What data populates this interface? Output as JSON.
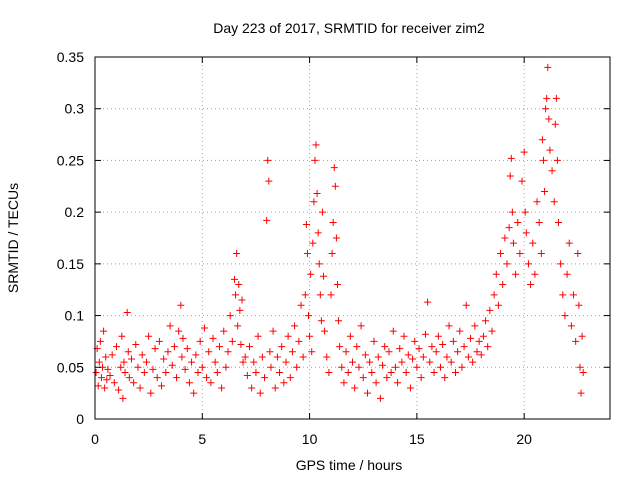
{
  "chart_data": {
    "type": "scatter",
    "title": "Day 223 of 2017, SRMTID for receiver zim2",
    "xlabel": "GPS time / hours",
    "ylabel": "SRMTID / TECUs",
    "xlim": [
      0,
      24
    ],
    "ylim": [
      0,
      0.35
    ],
    "xticks": [
      0,
      5,
      10,
      15,
      20
    ],
    "xtick_labels": [
      "0",
      "5",
      "10",
      "15",
      "20"
    ],
    "yticks": [
      0,
      0.05,
      0.1,
      0.15,
      0.2,
      0.25,
      0.3,
      0.35
    ],
    "ytick_labels": [
      "0",
      "0.05",
      "0.1",
      "0.15",
      "0.2",
      "0.25",
      "0.3",
      "0.35"
    ],
    "grid": true,
    "marker": "+",
    "color": "#ff0000",
    "series": [
      {
        "name": "SRMTID",
        "points": [
          [
            0.05,
            0.045
          ],
          [
            0.1,
            0.068
          ],
          [
            0.15,
            0.032
          ],
          [
            0.2,
            0.055
          ],
          [
            0.25,
            0.075
          ],
          [
            0.3,
            0.04
          ],
          [
            0.35,
            0.05
          ],
          [
            0.4,
            0.085
          ],
          [
            0.45,
            0.03
          ],
          [
            0.5,
            0.06
          ],
          [
            0.55,
            0.038
          ],
          [
            0.6,
            0.048
          ],
          [
            0.7,
            0.042
          ],
          [
            0.8,
            0.062
          ],
          [
            0.9,
            0.035
          ],
          [
            1.0,
            0.07
          ],
          [
            1.1,
            0.028
          ],
          [
            1.2,
            0.05
          ],
          [
            1.25,
            0.08
          ],
          [
            1.3,
            0.02
          ],
          [
            1.35,
            0.055
          ],
          [
            1.4,
            0.045
          ],
          [
            1.5,
            0.103
          ],
          [
            1.55,
            0.065
          ],
          [
            1.6,
            0.04
          ],
          [
            1.7,
            0.058
          ],
          [
            1.8,
            0.035
          ],
          [
            1.9,
            0.072
          ],
          [
            2.0,
            0.05
          ],
          [
            2.1,
            0.03
          ],
          [
            2.2,
            0.062
          ],
          [
            2.3,
            0.045
          ],
          [
            2.4,
            0.055
          ],
          [
            2.5,
            0.08
          ],
          [
            2.6,
            0.025
          ],
          [
            2.7,
            0.048
          ],
          [
            2.8,
            0.068
          ],
          [
            2.9,
            0.04
          ],
          [
            3.0,
            0.075
          ],
          [
            3.1,
            0.032
          ],
          [
            3.2,
            0.058
          ],
          [
            3.3,
            0.045
          ],
          [
            3.4,
            0.065
          ],
          [
            3.5,
            0.09
          ],
          [
            3.6,
            0.052
          ],
          [
            3.7,
            0.07
          ],
          [
            3.8,
            0.04
          ],
          [
            3.9,
            0.085
          ],
          [
            4.0,
            0.11
          ],
          [
            4.05,
            0.06
          ],
          [
            4.1,
            0.078
          ],
          [
            4.2,
            0.048
          ],
          [
            4.3,
            0.068
          ],
          [
            4.4,
            0.035
          ],
          [
            4.5,
            0.055
          ],
          [
            4.6,
            0.025
          ],
          [
            4.7,
            0.062
          ],
          [
            4.8,
            0.045
          ],
          [
            4.9,
            0.075
          ],
          [
            5.0,
            0.05
          ],
          [
            5.1,
            0.088
          ],
          [
            5.2,
            0.04
          ],
          [
            5.3,
            0.065
          ],
          [
            5.4,
            0.035
          ],
          [
            5.5,
            0.078
          ],
          [
            5.6,
            0.055
          ],
          [
            5.7,
            0.045
          ],
          [
            5.8,
            0.07
          ],
          [
            5.9,
            0.03
          ],
          [
            6.0,
            0.085
          ],
          [
            6.1,
            0.05
          ],
          [
            6.2,
            0.065
          ],
          [
            6.3,
            0.1
          ],
          [
            6.4,
            0.075
          ],
          [
            6.5,
            0.135
          ],
          [
            6.55,
            0.12
          ],
          [
            6.6,
            0.16
          ],
          [
            6.65,
            0.09
          ],
          [
            6.7,
            0.13
          ],
          [
            6.75,
            0.105
          ],
          [
            6.8,
            0.072
          ],
          [
            6.85,
            0.115
          ],
          [
            6.9,
            0.055
          ],
          [
            7.0,
            0.06
          ],
          [
            7.1,
            0.042
          ],
          [
            7.2,
            0.07
          ],
          [
            7.3,
            0.03
          ],
          [
            7.4,
            0.055
          ],
          [
            7.5,
            0.045
          ],
          [
            7.6,
            0.08
          ],
          [
            7.7,
            0.025
          ],
          [
            7.8,
            0.06
          ],
          [
            7.9,
            0.04
          ],
          [
            8.0,
            0.192
          ],
          [
            8.05,
            0.25
          ],
          [
            8.1,
            0.23
          ],
          [
            8.15,
            0.065
          ],
          [
            8.2,
            0.05
          ],
          [
            8.3,
            0.085
          ],
          [
            8.4,
            0.03
          ],
          [
            8.5,
            0.06
          ],
          [
            8.6,
            0.045
          ],
          [
            8.7,
            0.07
          ],
          [
            8.8,
            0.035
          ],
          [
            8.9,
            0.055
          ],
          [
            9.0,
            0.08
          ],
          [
            9.1,
            0.04
          ],
          [
            9.2,
            0.065
          ],
          [
            9.3,
            0.09
          ],
          [
            9.4,
            0.05
          ],
          [
            9.5,
            0.075
          ],
          [
            9.6,
            0.11
          ],
          [
            9.7,
            0.06
          ],
          [
            9.8,
            0.12
          ],
          [
            9.85,
            0.188
          ],
          [
            9.9,
            0.16
          ],
          [
            9.95,
            0.1
          ],
          [
            10.0,
            0.08
          ],
          [
            10.05,
            0.14
          ],
          [
            10.1,
            0.065
          ],
          [
            10.15,
            0.17
          ],
          [
            10.2,
            0.21
          ],
          [
            10.25,
            0.25
          ],
          [
            10.3,
            0.265
          ],
          [
            10.35,
            0.218
          ],
          [
            10.4,
            0.18
          ],
          [
            10.45,
            0.15
          ],
          [
            10.5,
            0.12
          ],
          [
            10.55,
            0.095
          ],
          [
            10.6,
            0.2
          ],
          [
            10.65,
            0.138
          ],
          [
            10.7,
            0.085
          ],
          [
            10.8,
            0.06
          ],
          [
            10.9,
            0.045
          ],
          [
            11.0,
            0.12
          ],
          [
            11.05,
            0.16
          ],
          [
            11.1,
            0.19
          ],
          [
            11.15,
            0.243
          ],
          [
            11.2,
            0.225
          ],
          [
            11.25,
            0.175
          ],
          [
            11.3,
            0.13
          ],
          [
            11.35,
            0.095
          ],
          [
            11.4,
            0.07
          ],
          [
            11.5,
            0.05
          ],
          [
            11.6,
            0.035
          ],
          [
            11.7,
            0.065
          ],
          [
            11.8,
            0.045
          ],
          [
            11.9,
            0.08
          ],
          [
            12.0,
            0.055
          ],
          [
            12.1,
            0.03
          ],
          [
            12.2,
            0.07
          ],
          [
            12.3,
            0.05
          ],
          [
            12.4,
            0.09
          ],
          [
            12.5,
            0.04
          ],
          [
            12.6,
            0.062
          ],
          [
            12.7,
            0.025
          ],
          [
            12.8,
            0.055
          ],
          [
            12.9,
            0.045
          ],
          [
            13.0,
            0.075
          ],
          [
            13.1,
            0.035
          ],
          [
            13.2,
            0.06
          ],
          [
            13.3,
            0.02
          ],
          [
            13.4,
            0.052
          ],
          [
            13.5,
            0.07
          ],
          [
            13.6,
            0.04
          ],
          [
            13.7,
            0.065
          ],
          [
            13.8,
            0.045
          ],
          [
            13.9,
            0.085
          ],
          [
            14.0,
            0.05
          ],
          [
            14.1,
            0.035
          ],
          [
            14.2,
            0.068
          ],
          [
            14.3,
            0.055
          ],
          [
            14.4,
            0.08
          ],
          [
            14.5,
            0.045
          ],
          [
            14.6,
            0.062
          ],
          [
            14.7,
            0.03
          ],
          [
            14.8,
            0.058
          ],
          [
            14.9,
            0.075
          ],
          [
            15.0,
            0.05
          ],
          [
            15.1,
            0.068
          ],
          [
            15.2,
            0.04
          ],
          [
            15.3,
            0.06
          ],
          [
            15.4,
            0.082
          ],
          [
            15.5,
            0.113
          ],
          [
            15.6,
            0.055
          ],
          [
            15.7,
            0.07
          ],
          [
            15.8,
            0.045
          ],
          [
            15.9,
            0.065
          ],
          [
            16.0,
            0.08
          ],
          [
            16.1,
            0.05
          ],
          [
            16.2,
            0.072
          ],
          [
            16.3,
            0.04
          ],
          [
            16.4,
            0.06
          ],
          [
            16.5,
            0.09
          ],
          [
            16.6,
            0.055
          ],
          [
            16.7,
            0.075
          ],
          [
            16.8,
            0.045
          ],
          [
            16.9,
            0.065
          ],
          [
            17.0,
            0.085
          ],
          [
            17.1,
            0.05
          ],
          [
            17.2,
            0.07
          ],
          [
            17.3,
            0.11
          ],
          [
            17.4,
            0.06
          ],
          [
            17.5,
            0.078
          ],
          [
            17.6,
            0.055
          ],
          [
            17.7,
            0.09
          ],
          [
            17.8,
            0.065
          ],
          [
            17.9,
            0.075
          ],
          [
            18.0,
            0.062
          ],
          [
            18.1,
            0.08
          ],
          [
            18.2,
            0.095
          ],
          [
            18.3,
            0.07
          ],
          [
            18.4,
            0.105
          ],
          [
            18.5,
            0.085
          ],
          [
            18.6,
            0.12
          ],
          [
            18.7,
            0.14
          ],
          [
            18.8,
            0.11
          ],
          [
            18.9,
            0.16
          ],
          [
            19.0,
            0.13
          ],
          [
            19.1,
            0.175
          ],
          [
            19.2,
            0.15
          ],
          [
            19.3,
            0.185
          ],
          [
            19.35,
            0.235
          ],
          [
            19.4,
            0.252
          ],
          [
            19.45,
            0.2
          ],
          [
            19.5,
            0.17
          ],
          [
            19.6,
            0.14
          ],
          [
            19.7,
            0.19
          ],
          [
            19.8,
            0.16
          ],
          [
            19.9,
            0.23
          ],
          [
            20.0,
            0.258
          ],
          [
            20.05,
            0.2
          ],
          [
            20.1,
            0.18
          ],
          [
            20.2,
            0.15
          ],
          [
            20.3,
            0.13
          ],
          [
            20.4,
            0.17
          ],
          [
            20.5,
            0.14
          ],
          [
            20.6,
            0.21
          ],
          [
            20.7,
            0.19
          ],
          [
            20.8,
            0.16
          ],
          [
            20.85,
            0.27
          ],
          [
            20.9,
            0.25
          ],
          [
            20.95,
            0.22
          ],
          [
            21.0,
            0.3
          ],
          [
            21.05,
            0.31
          ],
          [
            21.1,
            0.34
          ],
          [
            21.15,
            0.29
          ],
          [
            21.2,
            0.26
          ],
          [
            21.3,
            0.24
          ],
          [
            21.4,
            0.21
          ],
          [
            21.45,
            0.285
          ],
          [
            21.5,
            0.31
          ],
          [
            21.55,
            0.25
          ],
          [
            21.6,
            0.19
          ],
          [
            21.7,
            0.15
          ],
          [
            21.8,
            0.12
          ],
          [
            21.9,
            0.1
          ],
          [
            22.0,
            0.14
          ],
          [
            22.1,
            0.17
          ],
          [
            22.2,
            0.09
          ],
          [
            22.3,
            0.12
          ],
          [
            22.4,
            0.075
          ],
          [
            22.5,
            0.16
          ],
          [
            22.55,
            0.11
          ],
          [
            22.6,
            0.05
          ],
          [
            22.65,
            0.025
          ],
          [
            22.7,
            0.08
          ],
          [
            22.75,
            0.045
          ]
        ]
      }
    ]
  }
}
